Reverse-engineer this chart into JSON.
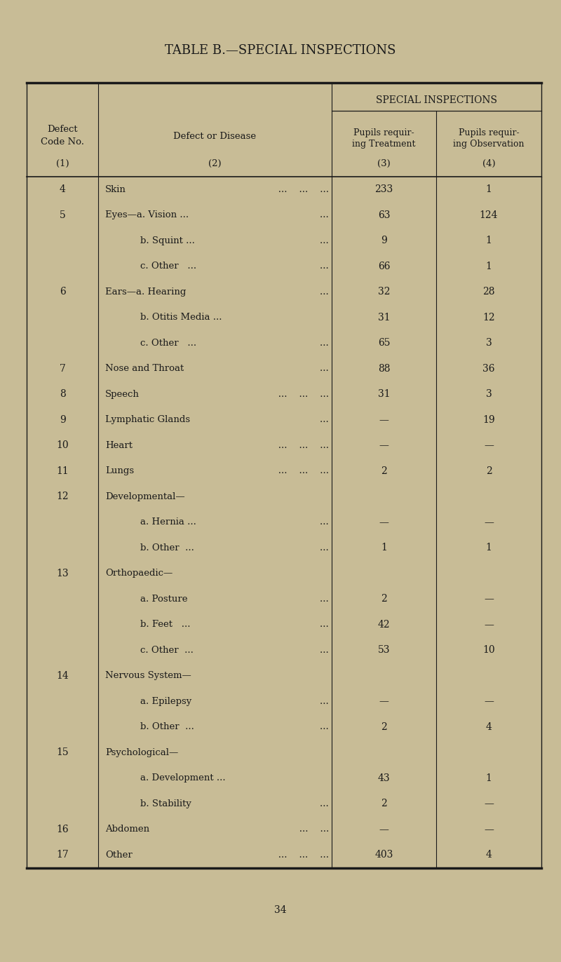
{
  "title": "TABLE B.—SPECIAL INSPECTIONS",
  "bg_color": "#c8bc96",
  "text_color": "#1a1a1a",
  "page_number": "34",
  "special_inspections_label": "SPECIAL INSPECTIONS",
  "rows": [
    {
      "code": "4",
      "disease": "Skin",
      "trail": "   ...    ...    ...",
      "sub": false,
      "col3": "233",
      "col4": "1"
    },
    {
      "code": "5",
      "disease": "Eyes—a. Vision ...",
      "trail": "    ...",
      "sub": false,
      "col3": "63",
      "col4": "124"
    },
    {
      "code": "",
      "disease": "b. Squint ...",
      "trail": "    ...",
      "sub": true,
      "col3": "9",
      "col4": "1"
    },
    {
      "code": "",
      "disease": "c. Other   ...",
      "trail": "    ...",
      "sub": true,
      "col3": "66",
      "col4": "1"
    },
    {
      "code": "6",
      "disease": "Ears—a. Hearing",
      "trail": "    ...",
      "sub": false,
      "col3": "32",
      "col4": "28"
    },
    {
      "code": "",
      "disease": "b. Otitis Media ...",
      "trail": "",
      "sub": true,
      "col3": "31",
      "col4": "12"
    },
    {
      "code": "",
      "disease": "c. Other   ...",
      "trail": "    ...",
      "sub": true,
      "col3": "65",
      "col4": "3"
    },
    {
      "code": "7",
      "disease": "Nose and Throat",
      "trail": "    ...",
      "sub": false,
      "col3": "88",
      "col4": "36"
    },
    {
      "code": "8",
      "disease": "Speech",
      "trail": "   ...    ...    ...",
      "sub": false,
      "col3": "31",
      "col4": "3"
    },
    {
      "code": "9",
      "disease": "Lymphatic Glands",
      "trail": "    ...",
      "sub": false,
      "col3": "—",
      "col4": "19"
    },
    {
      "code": "10",
      "disease": "Heart",
      "trail": "   ...    ...    ...",
      "sub": false,
      "col3": "—",
      "col4": "—"
    },
    {
      "code": "11",
      "disease": "Lungs",
      "trail": "   ...    ...    ...",
      "sub": false,
      "col3": "2",
      "col4": "2"
    },
    {
      "code": "12",
      "disease": "Developmental—",
      "trail": "",
      "sub": false,
      "col3": "",
      "col4": ""
    },
    {
      "code": "",
      "disease": "a. Hernia ...",
      "trail": "    ...",
      "sub": true,
      "col3": "—",
      "col4": "—"
    },
    {
      "code": "",
      "disease": "b. Other  ...",
      "trail": "    ...",
      "sub": true,
      "col3": "1",
      "col4": "1"
    },
    {
      "code": "13",
      "disease": "Orthopaedic—",
      "trail": "",
      "sub": false,
      "col3": "",
      "col4": ""
    },
    {
      "code": "",
      "disease": "a. Posture",
      "trail": "    ...",
      "sub": true,
      "col3": "2",
      "col4": "—"
    },
    {
      "code": "",
      "disease": "b. Feet   ...",
      "trail": "    ...",
      "sub": true,
      "col3": "42",
      "col4": "—"
    },
    {
      "code": "",
      "disease": "c. Other  ...",
      "trail": "    ...",
      "sub": true,
      "col3": "53",
      "col4": "10"
    },
    {
      "code": "14",
      "disease": "Nervous System—",
      "trail": "",
      "sub": false,
      "col3": "",
      "col4": ""
    },
    {
      "code": "",
      "disease": "a. Epilepsy",
      "trail": "    ...",
      "sub": true,
      "col3": "—",
      "col4": "—"
    },
    {
      "code": "",
      "disease": "b. Other  ...",
      "trail": "    ...",
      "sub": true,
      "col3": "2",
      "col4": "4"
    },
    {
      "code": "15",
      "disease": "Psychological—",
      "trail": "",
      "sub": false,
      "col3": "",
      "col4": ""
    },
    {
      "code": "",
      "disease": "a. Development ...",
      "trail": "",
      "sub": true,
      "col3": "43",
      "col4": "1"
    },
    {
      "code": "",
      "disease": "b. Stability",
      "trail": "    ...",
      "sub": true,
      "col3": "2",
      "col4": "—"
    },
    {
      "code": "16",
      "disease": "Abdomen",
      "trail": "   ...    ...",
      "sub": false,
      "col3": "—",
      "col4": "—"
    },
    {
      "code": "17",
      "disease": "Other",
      "trail": "   ...    ...    ...",
      "sub": false,
      "col3": "403",
      "col4": "4"
    }
  ]
}
